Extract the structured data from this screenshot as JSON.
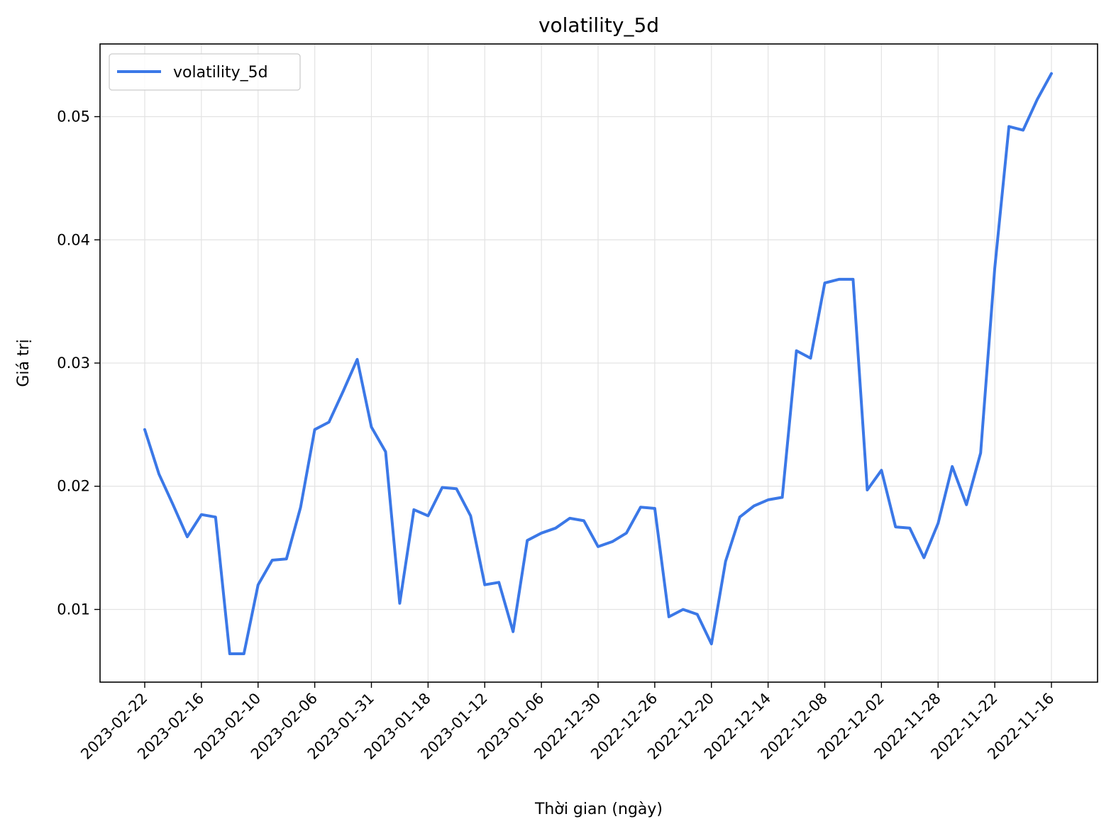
{
  "chart_data": {
    "type": "line",
    "title": "volatility_5d",
    "xlabel": "Thời gian (ngày)",
    "ylabel": "Giá trị",
    "ylim": [
      0.0041,
      0.0559
    ],
    "yticks": [
      0.01,
      0.02,
      0.03,
      0.04,
      0.05
    ],
    "ytick_labels": [
      "0.01",
      "0.02",
      "0.03",
      "0.04",
      "0.05"
    ],
    "xtick_labels": [
      "2023-02-22",
      "2023-02-16",
      "2023-02-10",
      "2023-02-06",
      "2023-01-31",
      "2023-01-18",
      "2023-01-12",
      "2023-01-06",
      "2022-12-30",
      "2022-12-26",
      "2022-12-20",
      "2022-12-14",
      "2022-12-08",
      "2022-12-02",
      "2022-11-28",
      "2022-11-22",
      "2022-11-16"
    ],
    "xtick_every": 4,
    "grid": true,
    "legend_position": "top-left",
    "colors": {
      "line": "#3b78e7",
      "grid": "#e3e3e3",
      "axes": "#000000",
      "legend_border": "#cccccc"
    },
    "series": [
      {
        "name": "volatility_5d",
        "values": [
          0.0246,
          0.021,
          0.0185,
          0.0159,
          0.0177,
          0.0175,
          0.0064,
          0.0064,
          0.012,
          0.014,
          0.0141,
          0.0183,
          0.0246,
          0.0252,
          0.0277,
          0.0303,
          0.0248,
          0.0228,
          0.0105,
          0.0181,
          0.0176,
          0.0199,
          0.0198,
          0.0176,
          0.012,
          0.0122,
          0.0082,
          0.0156,
          0.0162,
          0.0166,
          0.0174,
          0.0172,
          0.0151,
          0.0155,
          0.0162,
          0.0183,
          0.0182,
          0.0094,
          0.01,
          0.0096,
          0.0072,
          0.0139,
          0.0175,
          0.0184,
          0.0189,
          0.0191,
          0.031,
          0.0304,
          0.0365,
          0.0368,
          0.0368,
          0.0197,
          0.0213,
          0.0167,
          0.0166,
          0.0142,
          0.017,
          0.0216,
          0.0185,
          0.0227,
          0.0377,
          0.0492,
          0.0489,
          0.0514,
          0.0535
        ]
      }
    ]
  }
}
